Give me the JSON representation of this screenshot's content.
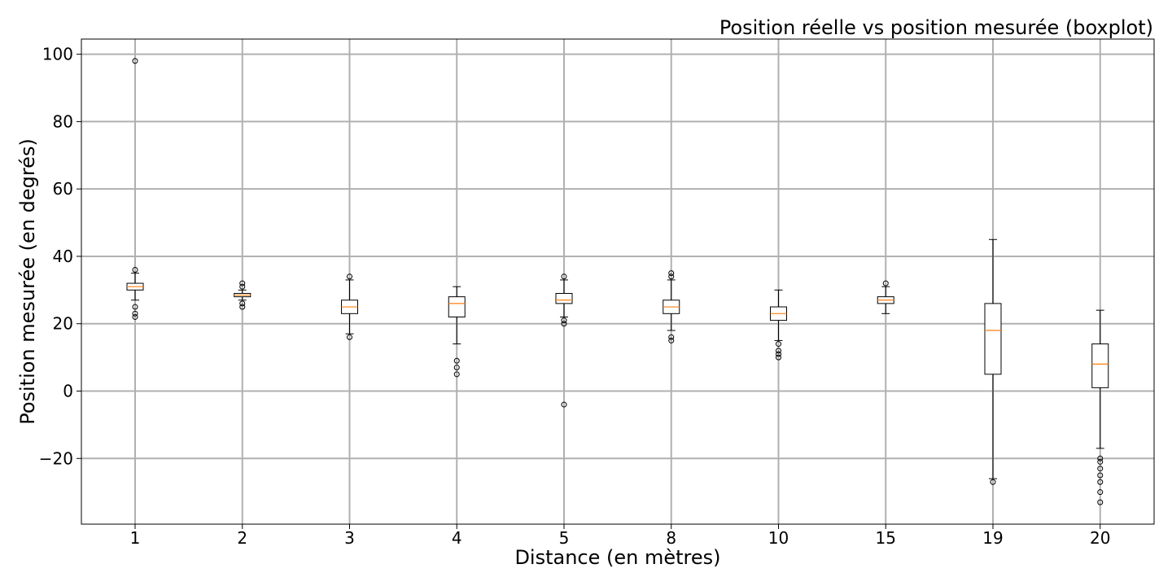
{
  "chart_data": {
    "type": "boxplot",
    "title": "Position réelle vs position mesurée (boxplot)",
    "xlabel": "Distance (en mètres)",
    "ylabel": "Position mesurée (en degrés)",
    "categories": [
      "1",
      "2",
      "3",
      "4",
      "5",
      "8",
      "10",
      "15",
      "19",
      "20"
    ],
    "y_ticks": [
      "100",
      "80",
      "60",
      "40",
      "20",
      "0",
      "−20"
    ],
    "y_tick_values": [
      100,
      80,
      60,
      40,
      20,
      0,
      -20
    ],
    "ylim": [
      -39.5,
      104.5
    ],
    "grid": true,
    "colors": {
      "median": "#ff7f0e",
      "box": "#000000",
      "grid": "#b0b0b0"
    },
    "boxes": [
      {
        "category": "1",
        "whisker_low": 27,
        "q1": 30,
        "median": 31,
        "q3": 32,
        "whisker_high": 35,
        "outliers": [
          98,
          36,
          25,
          23,
          22
        ]
      },
      {
        "category": "2",
        "whisker_low": 27,
        "q1": 28,
        "median": 28.5,
        "q3": 29,
        "whisker_high": 30,
        "outliers": [
          32,
          31,
          26,
          25
        ]
      },
      {
        "category": "3",
        "whisker_low": 17,
        "q1": 23,
        "median": 25,
        "q3": 27,
        "whisker_high": 33,
        "outliers": [
          34,
          16
        ]
      },
      {
        "category": "4",
        "whisker_low": 14,
        "q1": 22,
        "median": 26,
        "q3": 28,
        "whisker_high": 31,
        "outliers": [
          9,
          7,
          5
        ]
      },
      {
        "category": "5",
        "whisker_low": 22,
        "q1": 26,
        "median": 27,
        "q3": 29,
        "whisker_high": 33,
        "outliers": [
          34,
          21,
          20,
          -4
        ]
      },
      {
        "category": "8",
        "whisker_low": 18,
        "q1": 23,
        "median": 25,
        "q3": 27,
        "whisker_high": 33,
        "outliers": [
          35,
          34,
          16,
          15
        ]
      },
      {
        "category": "10",
        "whisker_low": 15,
        "q1": 21,
        "median": 23,
        "q3": 25,
        "whisker_high": 30,
        "outliers": [
          14,
          12,
          11,
          10
        ]
      },
      {
        "category": "15",
        "whisker_low": 23,
        "q1": 26,
        "median": 27,
        "q3": 28,
        "whisker_high": 31,
        "outliers": [
          32
        ]
      },
      {
        "category": "19",
        "whisker_low": -26,
        "q1": 5,
        "median": 18,
        "q3": 26,
        "whisker_high": 45,
        "outliers": [
          -27
        ]
      },
      {
        "category": "20",
        "whisker_low": -17,
        "q1": 1,
        "median": 8,
        "q3": 14,
        "whisker_high": 24,
        "outliers": [
          -20,
          -21,
          -23,
          -25,
          -27,
          -30,
          -33
        ]
      }
    ]
  }
}
